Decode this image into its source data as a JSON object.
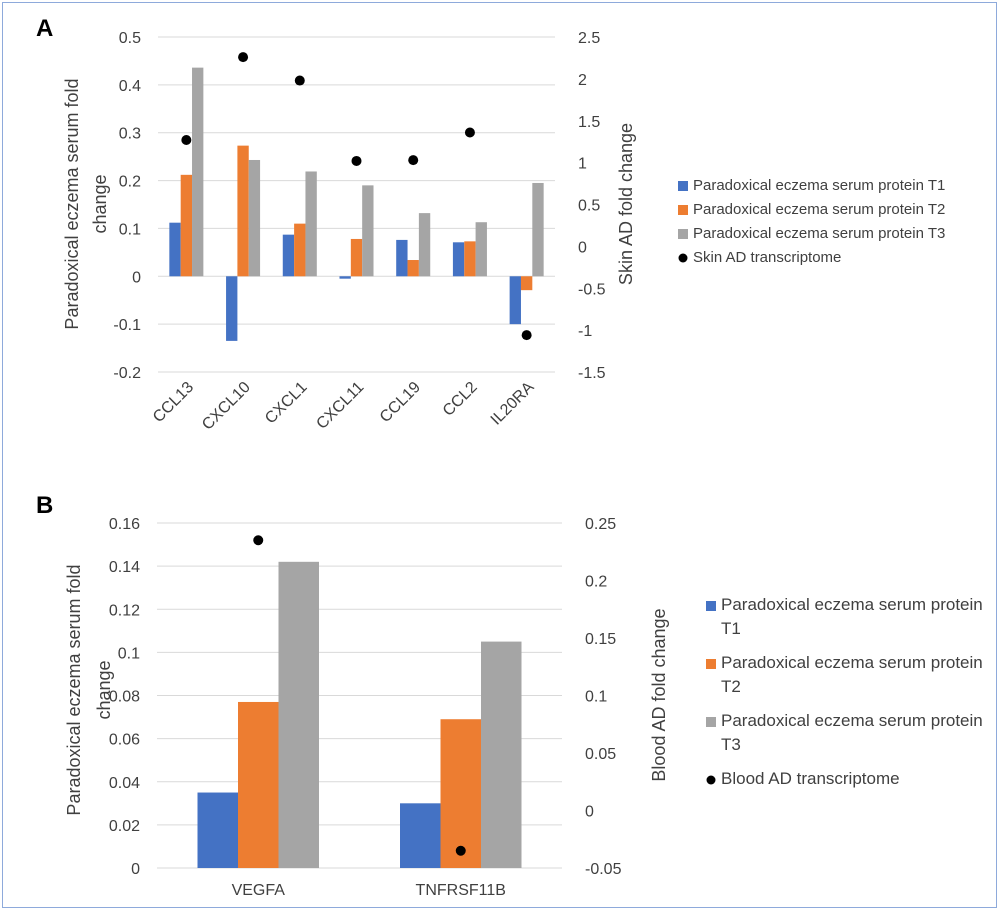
{
  "chart_data": [
    {
      "panel": "A",
      "type": "bar",
      "categories": [
        "CCL13",
        "CXCL10",
        "CXCL1",
        "CXCL11",
        "CCL19",
        "CCL2",
        "IL20RA"
      ],
      "series": [
        {
          "name": "Paradoxical eczema serum protein T1",
          "color": "#4472c4",
          "values": [
            0.112,
            -0.135,
            0.087,
            -0.005,
            0.076,
            0.071,
            -0.1
          ]
        },
        {
          "name": "Paradoxical eczema serum protein T2",
          "color": "#ed7d31",
          "values": [
            0.212,
            0.273,
            0.11,
            0.078,
            0.034,
            0.073,
            -0.029
          ]
        },
        {
          "name": "Paradoxical eczema serum protein T3",
          "color": "#a5a5a5",
          "values": [
            0.436,
            0.243,
            0.219,
            0.19,
            0.132,
            0.113,
            0.195
          ]
        }
      ],
      "secondary_series": {
        "name": "Skin AD transcriptome",
        "type": "scatter",
        "color": "#000000",
        "values": [
          1.27,
          2.26,
          1.98,
          1.02,
          1.03,
          1.36,
          -1.06
        ]
      },
      "ylabel": "Paradoxical eczema serum fold change",
      "y2label": "Skin AD fold change",
      "ylim": [
        -0.2,
        0.5
      ],
      "y_ticks": [
        "0.5",
        "0.4",
        "0.3",
        "0.2",
        "0.1",
        "0",
        "-0.1",
        "-0.2"
      ],
      "y2lim": [
        -1.5,
        2.5
      ],
      "y2_ticks": [
        "2.5",
        "2",
        "1.5",
        "1",
        "0.5",
        "0",
        "-0.5",
        "-1",
        "-1.5"
      ],
      "legend_position": "right"
    },
    {
      "panel": "B",
      "type": "bar",
      "categories": [
        "VEGFA",
        "TNFRSF11B"
      ],
      "series": [
        {
          "name": "Paradoxical eczema serum protein T1",
          "color": "#4472c4",
          "values": [
            0.035,
            0.03
          ]
        },
        {
          "name": "Paradoxical eczema serum protein T2",
          "color": "#ed7d31",
          "values": [
            0.077,
            0.069
          ]
        },
        {
          "name": "Paradoxical eczema serum protein T3",
          "color": "#a5a5a5",
          "values": [
            0.142,
            0.105
          ]
        }
      ],
      "secondary_series": {
        "name": "Blood AD transcriptome",
        "type": "scatter",
        "color": "#000000",
        "values": [
          0.235,
          -0.035
        ]
      },
      "ylabel": "Paradoxical eczema serum fold change",
      "y2label": "Blood AD fold change",
      "ylim": [
        0,
        0.16
      ],
      "y_ticks": [
        "0.16",
        "0.14",
        "0.12",
        "0.1",
        "0.08",
        "0.06",
        "0.04",
        "0.02",
        "0"
      ],
      "y2lim": [
        -0.05,
        0.25
      ],
      "y2_ticks": [
        "0.25",
        "0.2",
        "0.15",
        "0.1",
        "0.05",
        "0",
        "-0.05"
      ],
      "legend_position": "right"
    }
  ]
}
